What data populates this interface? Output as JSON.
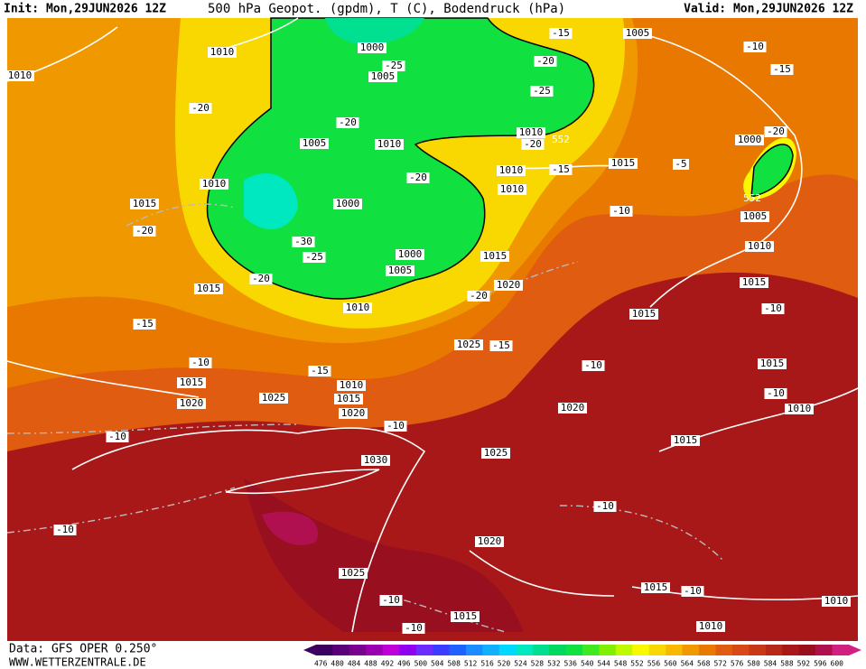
{
  "header": {
    "init": "Init: Mon,29JUN2026 12Z",
    "title": "500 hPa Geopot. (gpdm), T (C), Bodendruck (hPa)",
    "valid": "Valid: Mon,29JUN2026 12Z"
  },
  "footer": {
    "data": "Data: GFS OPER 0.250°",
    "site": "WWW.WETTERZENTRALE.DE"
  },
  "colorbar": {
    "labels": [
      "476",
      "480",
      "484",
      "488",
      "492",
      "496",
      "500",
      "504",
      "508",
      "512",
      "516",
      "520",
      "524",
      "528",
      "532",
      "536",
      "540",
      "544",
      "548",
      "552",
      "556",
      "560",
      "564",
      "568",
      "572",
      "576",
      "580",
      "584",
      "588",
      "592",
      "596",
      "600"
    ],
    "colors": [
      "#3c0060",
      "#5a0078",
      "#7a0090",
      "#9a00b0",
      "#c000d8",
      "#9000f0",
      "#6a2cff",
      "#3a3cff",
      "#2060ff",
      "#1a8cff",
      "#10b0ff",
      "#00d8ff",
      "#00e8c0",
      "#00e090",
      "#00d860",
      "#10e040",
      "#40e820",
      "#80f000",
      "#c0f800",
      "#f8f800",
      "#f8d800",
      "#f8b800",
      "#f09800",
      "#e87800",
      "#e05c10",
      "#d84818",
      "#c83818",
      "#b82818",
      "#a81818",
      "#981020",
      "#b01050",
      "#d02080"
    ]
  },
  "map": {
    "isobar_labels": [
      "1010",
      "1010",
      "1000",
      "1005",
      "1005",
      "1010",
      "1010",
      "1000",
      "1000",
      "1005",
      "1015",
      "1015",
      "1010",
      "1015",
      "1020",
      "1025",
      "1010",
      "1010",
      "1010",
      "1015",
      "1005",
      "1000",
      "1005",
      "1010",
      "1015",
      "1015",
      "1015",
      "1010",
      "1015",
      "1020",
      "1025",
      "1010",
      "1015",
      "1020",
      "1030",
      "1025",
      "1020",
      "1015",
      "1020",
      "1025",
      "1015",
      "1015",
      "1010",
      "1010"
    ],
    "temperature_labels": [
      "-25",
      "-20",
      "-20",
      "-20",
      "-20",
      "-30",
      "-25",
      "-25",
      "-20",
      "-15",
      "-20",
      "-15",
      "-10",
      "-5",
      "-10",
      "-15",
      "-20",
      "-20",
      "-20",
      "-15",
      "-10",
      "-15",
      "-15",
      "-10",
      "-10",
      "-10",
      "-10",
      "-10",
      "-10",
      "-10",
      "-10",
      "-10",
      "-10"
    ],
    "contour_labels": [
      "552",
      "552"
    ]
  }
}
